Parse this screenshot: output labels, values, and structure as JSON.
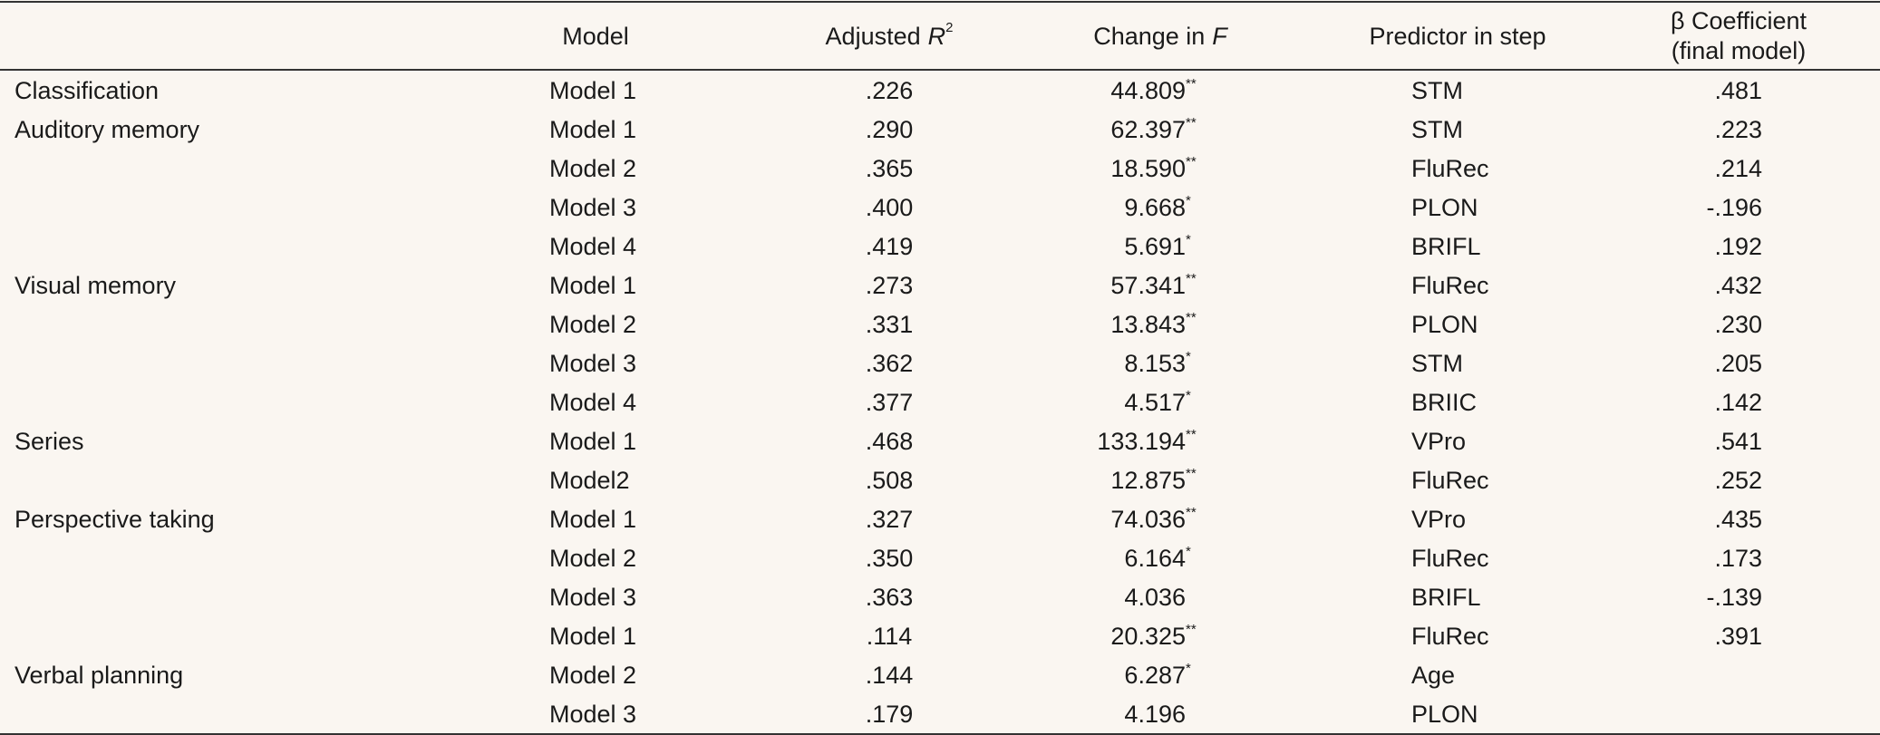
{
  "table": {
    "columns": [
      {
        "label": "Model"
      },
      {
        "label": "Adjusted",
        "var": "R",
        "sup": "2"
      },
      {
        "label": "Change in",
        "var": "F"
      },
      {
        "label": "Predictor in step"
      },
      {
        "line1": "β Coefficient",
        "line2": "(final model)"
      }
    ],
    "rows": [
      {
        "group": "Classification",
        "model": "Model 1",
        "r2": ".226",
        "f": "44.809",
        "sig": "**",
        "predictor": "STM",
        "beta": ".481"
      },
      {
        "group": "Auditory memory",
        "model": "Model 1",
        "r2": ".290",
        "f": "62.397",
        "sig": "**",
        "predictor": "STM",
        "beta": ".223"
      },
      {
        "model": "Model 2",
        "r2": ".365",
        "f": "18.590",
        "sig": "**",
        "predictor": "FluRec",
        "beta": ".214"
      },
      {
        "model": "Model 3",
        "r2": ".400",
        "f": "9.668",
        "sig": "*",
        "predictor": "PLON",
        "beta": "-.196"
      },
      {
        "model": "Model 4",
        "r2": ".419",
        "f": "5.691",
        "sig": "*",
        "predictor": "BRIFL",
        "beta": ".192"
      },
      {
        "group": "Visual memory",
        "model": "Model 1",
        "r2": ".273",
        "f": "57.341",
        "sig": "**",
        "predictor": "FluRec",
        "beta": ".432"
      },
      {
        "model": "Model 2",
        "r2": ".331",
        "f": "13.843",
        "sig": "**",
        "predictor": "PLON",
        "beta": ".230"
      },
      {
        "model": "Model 3",
        "r2": ".362",
        "f": "8.153",
        "sig": "*",
        "predictor": "STM",
        "beta": ".205"
      },
      {
        "model": "Model 4",
        "r2": ".377",
        "f": "4.517",
        "sig": "*",
        "predictor": "BRIIC",
        "beta": ".142"
      },
      {
        "group": "Series",
        "model": "Model 1",
        "r2": ".468",
        "f": "133.194",
        "sig": "**",
        "predictor": "VPro",
        "beta": ".541"
      },
      {
        "model": "Model2",
        "r2": ".508",
        "f": "12.875",
        "sig": "**",
        "predictor": "FluRec",
        "beta": ".252"
      },
      {
        "group": "Perspective taking",
        "model": "Model 1",
        "r2": ".327",
        "f": "74.036",
        "sig": "**",
        "predictor": "VPro",
        "beta": ".435"
      },
      {
        "model": "Model 2",
        "r2": ".350",
        "f": "6.164",
        "sig": "*",
        "predictor": "FluRec",
        "beta": ".173"
      },
      {
        "model": "Model 3",
        "r2": ".363",
        "f": "4.036",
        "predictor": "BRIFL",
        "beta": "-.139"
      },
      {
        "model": "Model 1",
        "r2": ".114",
        "f": "20.325",
        "sig": "**",
        "predictor": "FluRec",
        "beta": ".391"
      },
      {
        "group": "Verbal planning",
        "model": "Model 2",
        "r2": ".144",
        "f": "6.287",
        "sig": "*",
        "predictor": "Age"
      },
      {
        "model": "Model 3",
        "r2": ".179",
        "f": "4.196",
        "predictor": "PLON"
      }
    ]
  }
}
